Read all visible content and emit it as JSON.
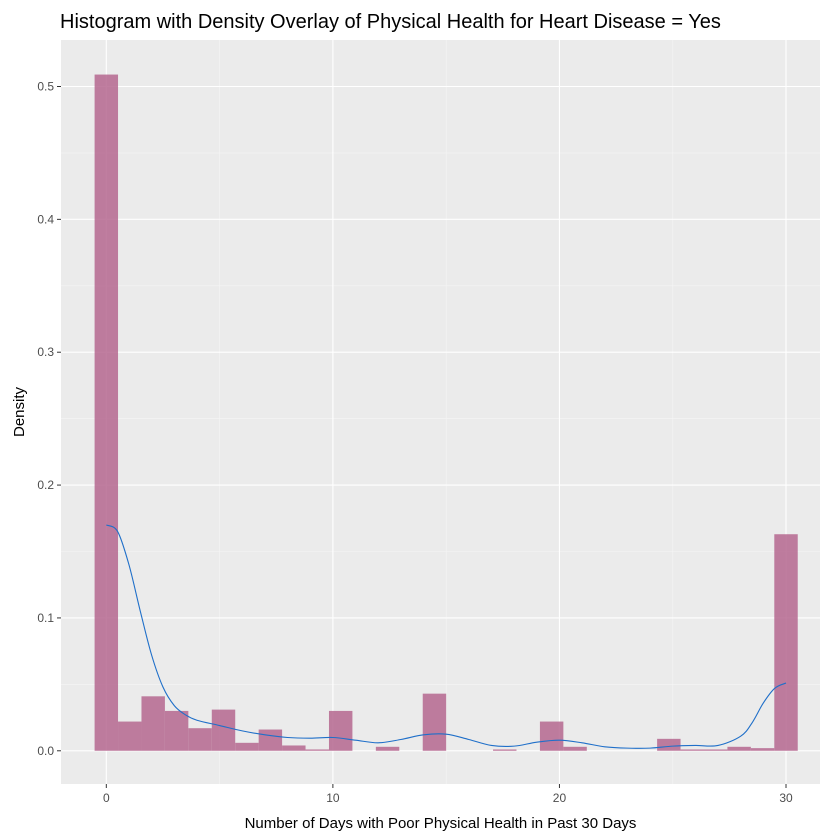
{
  "chart_data": {
    "type": "histogram",
    "title": "Histogram with Density Overlay of Physical Health for Heart Disease = Yes",
    "xlabel": "Number of Days with Poor Physical Health in Past 30 Days",
    "ylabel": "Density",
    "xlim": [
      -2,
      31.5
    ],
    "ylim": [
      -0.025,
      0.535
    ],
    "x_ticks": [
      0,
      10,
      20,
      30
    ],
    "x_tick_labels": [
      "0",
      "10",
      "20",
      "30"
    ],
    "y_ticks": [
      0.0,
      0.1,
      0.2,
      0.3,
      0.4,
      0.5
    ],
    "y_tick_labels": [
      "0.0",
      "0.1",
      "0.2",
      "0.3",
      "0.4",
      "0.5"
    ],
    "grid": true,
    "legend": "none",
    "bin_width": 1.0345,
    "bins": [
      {
        "center": 0.0,
        "density": 0.509
      },
      {
        "center": 1.0345,
        "density": 0.022
      },
      {
        "center": 2.069,
        "density": 0.041
      },
      {
        "center": 3.1035,
        "density": 0.03
      },
      {
        "center": 4.138,
        "density": 0.017
      },
      {
        "center": 5.1725,
        "density": 0.031
      },
      {
        "center": 6.207,
        "density": 0.006
      },
      {
        "center": 7.2415,
        "density": 0.016
      },
      {
        "center": 8.276,
        "density": 0.004
      },
      {
        "center": 9.3105,
        "density": 0.001
      },
      {
        "center": 10.345,
        "density": 0.03
      },
      {
        "center": 11.3795,
        "density": 0.0
      },
      {
        "center": 12.414,
        "density": 0.003
      },
      {
        "center": 13.4485,
        "density": 0.0
      },
      {
        "center": 14.483,
        "density": 0.043
      },
      {
        "center": 15.5175,
        "density": 0.0
      },
      {
        "center": 16.552,
        "density": 0.0
      },
      {
        "center": 17.5865,
        "density": 0.001
      },
      {
        "center": 18.621,
        "density": 0.0
      },
      {
        "center": 19.6555,
        "density": 0.022
      },
      {
        "center": 20.69,
        "density": 0.003
      },
      {
        "center": 21.7245,
        "density": 0.0
      },
      {
        "center": 22.759,
        "density": 0.0
      },
      {
        "center": 23.7935,
        "density": 0.0
      },
      {
        "center": 24.828,
        "density": 0.009
      },
      {
        "center": 25.8625,
        "density": 0.001
      },
      {
        "center": 26.897,
        "density": 0.001
      },
      {
        "center": 27.9315,
        "density": 0.003
      },
      {
        "center": 28.966,
        "density": 0.002
      },
      {
        "center": 30.0,
        "density": 0.163
      }
    ],
    "density_curve": {
      "x": [
        0,
        0.5,
        1,
        1.5,
        2,
        2.5,
        3,
        3.5,
        4,
        5,
        6,
        7,
        8,
        9,
        10,
        11,
        12,
        13,
        14,
        15,
        16,
        17,
        18,
        19,
        20,
        21,
        22,
        23,
        24,
        25,
        26,
        27,
        28,
        28.5,
        29,
        29.5,
        30
      ],
      "y": [
        0.17,
        0.165,
        0.14,
        0.105,
        0.072,
        0.048,
        0.034,
        0.027,
        0.023,
        0.019,
        0.015,
        0.012,
        0.01,
        0.0095,
        0.01,
        0.008,
        0.006,
        0.0085,
        0.012,
        0.0125,
        0.0085,
        0.004,
        0.0035,
        0.0065,
        0.008,
        0.006,
        0.003,
        0.002,
        0.002,
        0.0035,
        0.004,
        0.004,
        0.011,
        0.021,
        0.036,
        0.047,
        0.051
      ]
    },
    "colors": {
      "panel_background": "#ebebeb",
      "grid_major": "#ffffff",
      "grid_minor": "#f5f5f5",
      "bar_fill": "#b5678f",
      "density_line": "#1f6fc9",
      "tick_text": "#4d4d4d",
      "text": "#000000"
    }
  }
}
